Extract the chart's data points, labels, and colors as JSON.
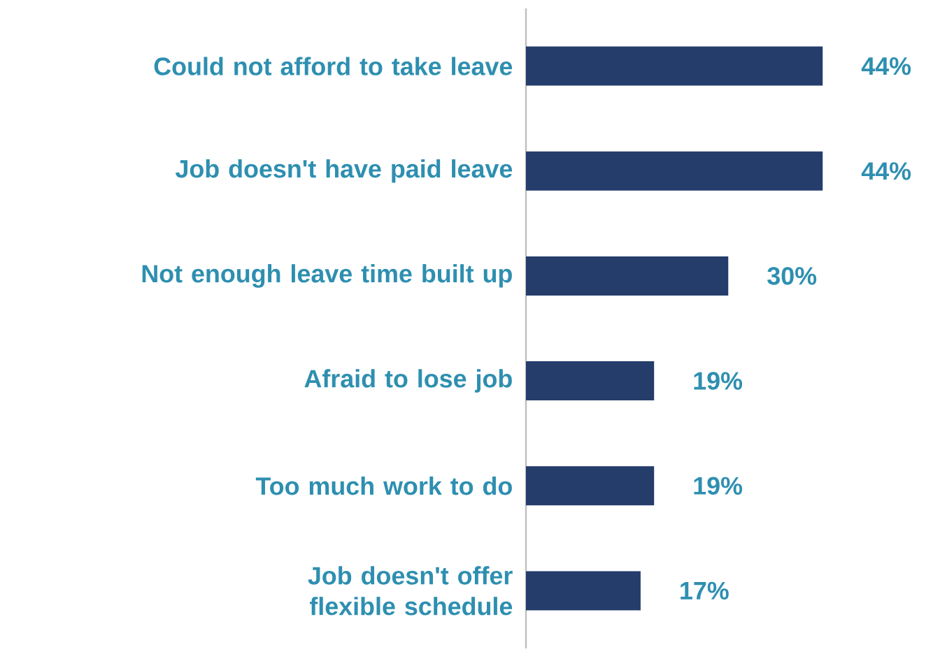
{
  "chart_data": {
    "type": "bar",
    "orientation": "horizontal",
    "categories": [
      "Could not afford to take leave",
      "Job doesn't have paid leave",
      "Not enough leave time built up",
      "Afraid to lose job",
      "Too much work to do",
      "Job doesn't offer flexible schedule"
    ],
    "values": [
      44,
      44,
      30,
      19,
      19,
      17
    ],
    "value_labels": [
      "44%",
      "44%",
      "30%",
      "19%",
      "19%",
      "17%"
    ],
    "color": "#253d6b"
  }
}
